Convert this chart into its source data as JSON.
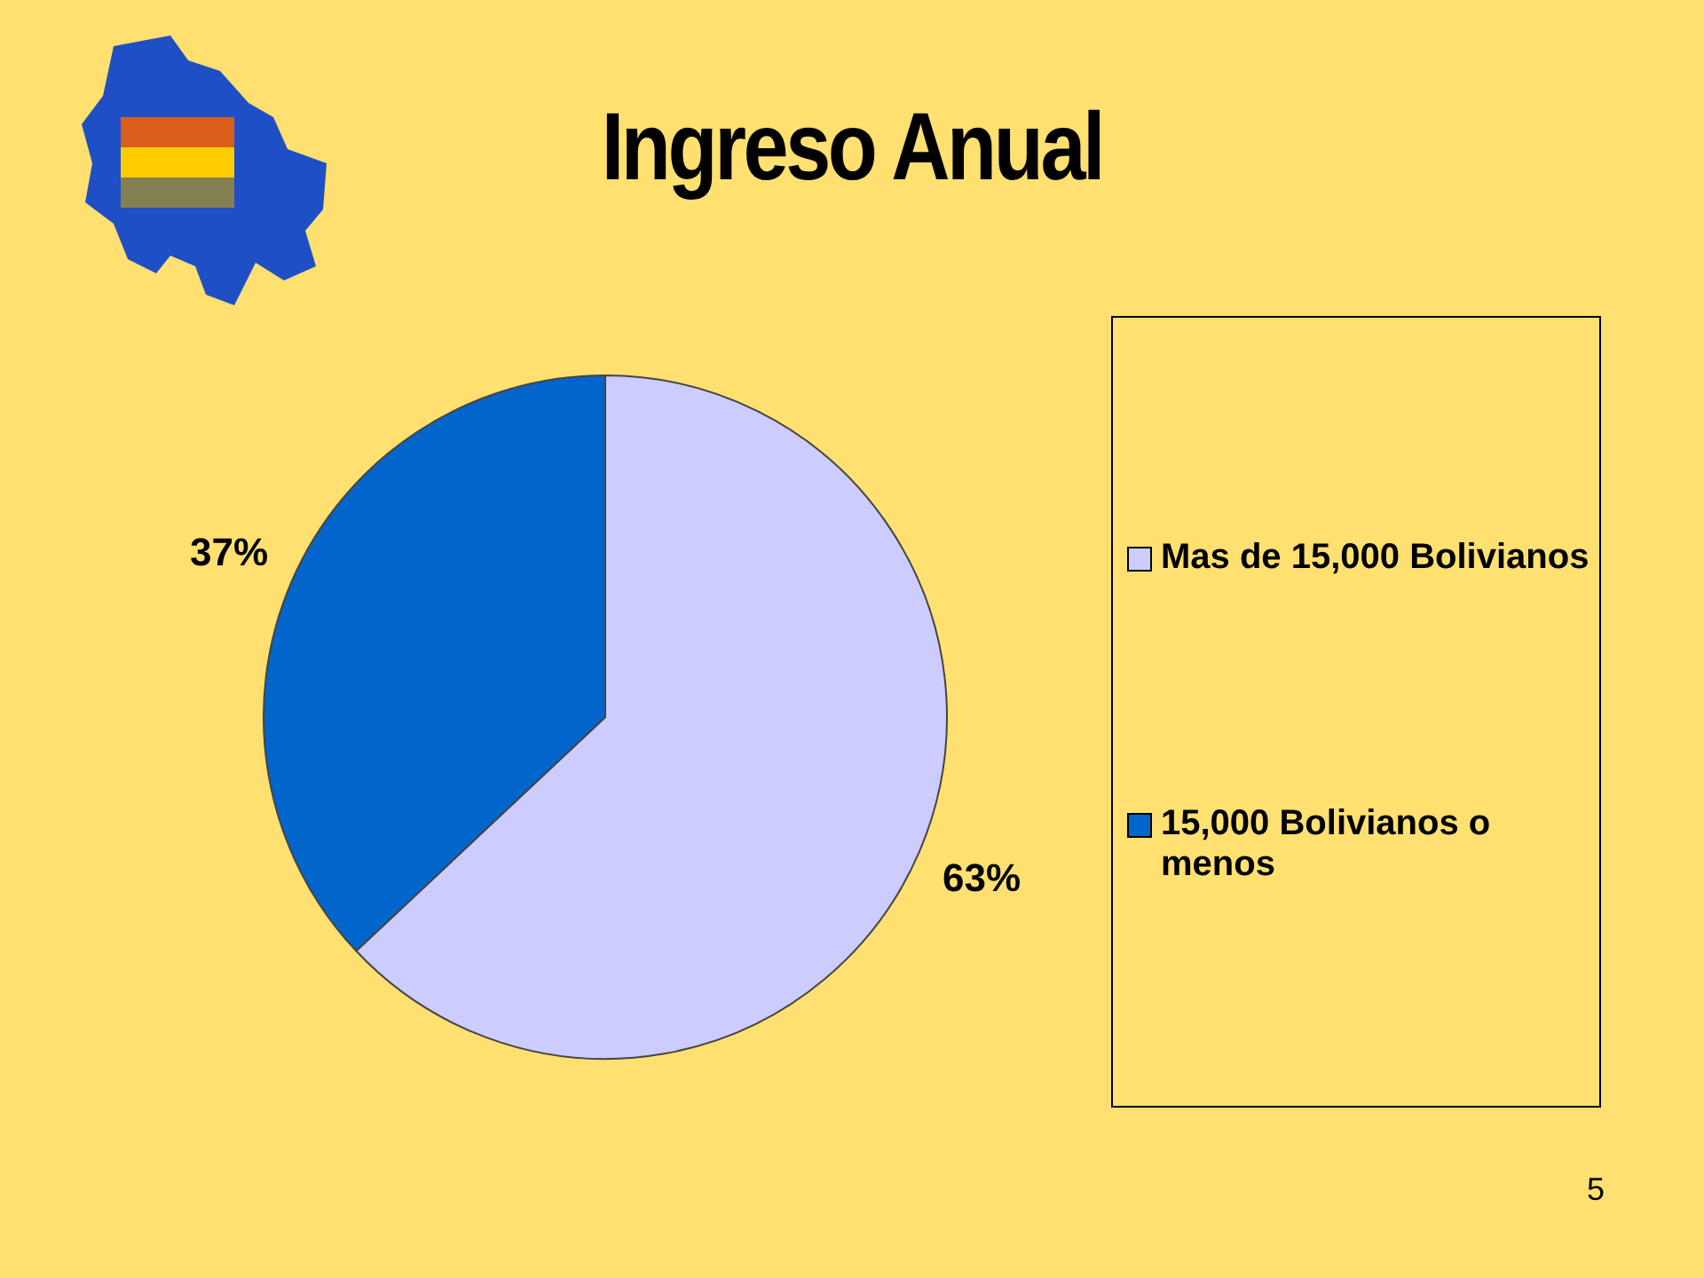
{
  "chart_data": {
    "type": "pie",
    "title": "Ingreso Anual",
    "categories": [
      "Mas de 15,000 Bolivianos",
      "15,000 Bolivianos o menos"
    ],
    "values": [
      63,
      37
    ],
    "colors": [
      "#ccccff",
      "#0066cc"
    ],
    "value_labels": [
      "63%",
      "37%"
    ],
    "legend": "right",
    "annotations": [
      "5"
    ]
  }
}
